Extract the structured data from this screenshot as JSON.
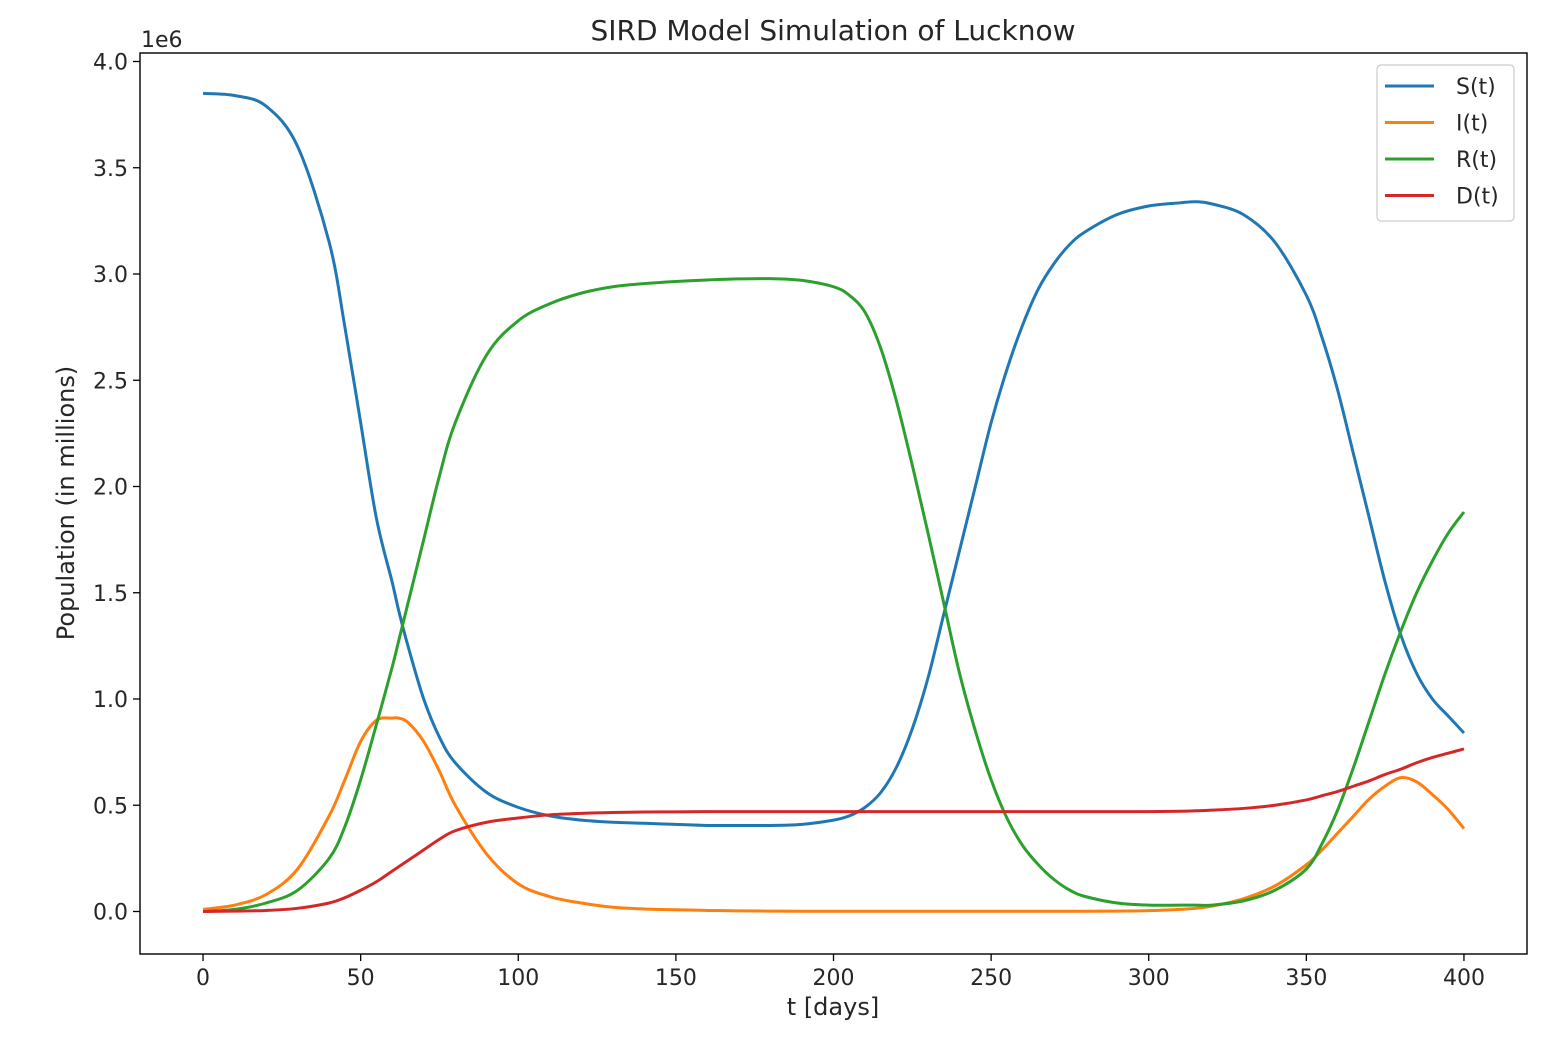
{
  "chart_data": {
    "type": "line",
    "title": "SIRD Model Simulation of Lucknow",
    "xlabel": "t [days]",
    "ylabel": "Population (in millions)",
    "y_offset_text": "1e6",
    "xlim": [
      -20,
      420
    ],
    "ylim": [
      -0.2,
      4.04
    ],
    "xticks": [
      0,
      50,
      100,
      150,
      200,
      250,
      300,
      350,
      400
    ],
    "yticks": [
      0.0,
      0.5,
      1.0,
      1.5,
      2.0,
      2.5,
      3.0,
      3.5,
      4.0
    ],
    "ytick_labels": [
      "0.0",
      "0.5",
      "1.0",
      "1.5",
      "2.0",
      "2.5",
      "3.0",
      "3.5",
      "4.0"
    ],
    "xtick_labels": [
      "0",
      "50",
      "100",
      "150",
      "200",
      "250",
      "300",
      "350",
      "400"
    ],
    "grid": false,
    "legend_position": "top-right",
    "x": [
      0,
      10,
      20,
      30,
      40,
      45,
      50,
      55,
      60,
      62,
      65,
      70,
      75,
      80,
      90,
      100,
      110,
      120,
      130,
      140,
      150,
      160,
      170,
      180,
      190,
      200,
      205,
      210,
      215,
      220,
      225,
      230,
      235,
      240,
      245,
      250,
      255,
      260,
      265,
      270,
      275,
      280,
      290,
      300,
      310,
      315,
      320,
      330,
      340,
      350,
      355,
      360,
      365,
      370,
      375,
      380,
      385,
      390,
      395,
      400
    ],
    "series": [
      {
        "name": "S(t)",
        "color": "#1f77b4",
        "values": [
          3.85,
          3.84,
          3.79,
          3.6,
          3.15,
          2.75,
          2.3,
          1.85,
          1.55,
          1.42,
          1.25,
          1.0,
          0.82,
          0.7,
          0.56,
          0.49,
          0.45,
          0.43,
          0.42,
          0.415,
          0.41,
          0.405,
          0.405,
          0.405,
          0.41,
          0.43,
          0.45,
          0.49,
          0.56,
          0.68,
          0.86,
          1.1,
          1.4,
          1.7,
          2.0,
          2.3,
          2.55,
          2.76,
          2.93,
          3.05,
          3.14,
          3.2,
          3.28,
          3.32,
          3.335,
          3.34,
          3.33,
          3.28,
          3.15,
          2.9,
          2.7,
          2.45,
          2.15,
          1.85,
          1.55,
          1.3,
          1.12,
          1.0,
          0.92,
          0.84
        ]
      },
      {
        "name": "I(t)",
        "color": "#ff7f0e",
        "values": [
          0.01,
          0.03,
          0.08,
          0.2,
          0.45,
          0.62,
          0.8,
          0.9,
          0.91,
          0.91,
          0.89,
          0.8,
          0.66,
          0.5,
          0.27,
          0.13,
          0.07,
          0.04,
          0.02,
          0.012,
          0.008,
          0.005,
          0.003,
          0.002,
          0.001,
          0.001,
          0.001,
          0.001,
          0.001,
          0.001,
          0.001,
          0.001,
          0.001,
          0.001,
          0.001,
          0.001,
          0.001,
          0.001,
          0.001,
          0.001,
          0.001,
          0.001,
          0.002,
          0.004,
          0.01,
          0.015,
          0.025,
          0.06,
          0.12,
          0.22,
          0.29,
          0.37,
          0.45,
          0.53,
          0.59,
          0.63,
          0.61,
          0.55,
          0.48,
          0.39
        ]
      },
      {
        "name": "R(t)",
        "color": "#2ca02c",
        "values": [
          0.0,
          0.01,
          0.04,
          0.1,
          0.25,
          0.4,
          0.62,
          0.88,
          1.15,
          1.27,
          1.45,
          1.75,
          2.05,
          2.3,
          2.62,
          2.78,
          2.86,
          2.91,
          2.94,
          2.955,
          2.965,
          2.972,
          2.977,
          2.978,
          2.97,
          2.94,
          2.9,
          2.82,
          2.65,
          2.4,
          2.1,
          1.78,
          1.45,
          1.12,
          0.85,
          0.62,
          0.44,
          0.31,
          0.22,
          0.15,
          0.1,
          0.07,
          0.04,
          0.03,
          0.03,
          0.03,
          0.03,
          0.05,
          0.1,
          0.2,
          0.32,
          0.48,
          0.68,
          0.9,
          1.12,
          1.32,
          1.5,
          1.65,
          1.78,
          1.88
        ]
      },
      {
        "name": "D(t)",
        "color": "#d62728",
        "values": [
          0.0,
          0.002,
          0.005,
          0.015,
          0.04,
          0.065,
          0.1,
          0.14,
          0.19,
          0.21,
          0.24,
          0.29,
          0.34,
          0.38,
          0.42,
          0.44,
          0.455,
          0.462,
          0.466,
          0.468,
          0.469,
          0.47,
          0.47,
          0.47,
          0.47,
          0.47,
          0.47,
          0.47,
          0.47,
          0.47,
          0.47,
          0.47,
          0.47,
          0.47,
          0.47,
          0.47,
          0.47,
          0.47,
          0.47,
          0.47,
          0.47,
          0.47,
          0.47,
          0.47,
          0.472,
          0.474,
          0.477,
          0.485,
          0.5,
          0.525,
          0.545,
          0.565,
          0.59,
          0.615,
          0.645,
          0.67,
          0.7,
          0.725,
          0.745,
          0.765
        ]
      }
    ]
  }
}
